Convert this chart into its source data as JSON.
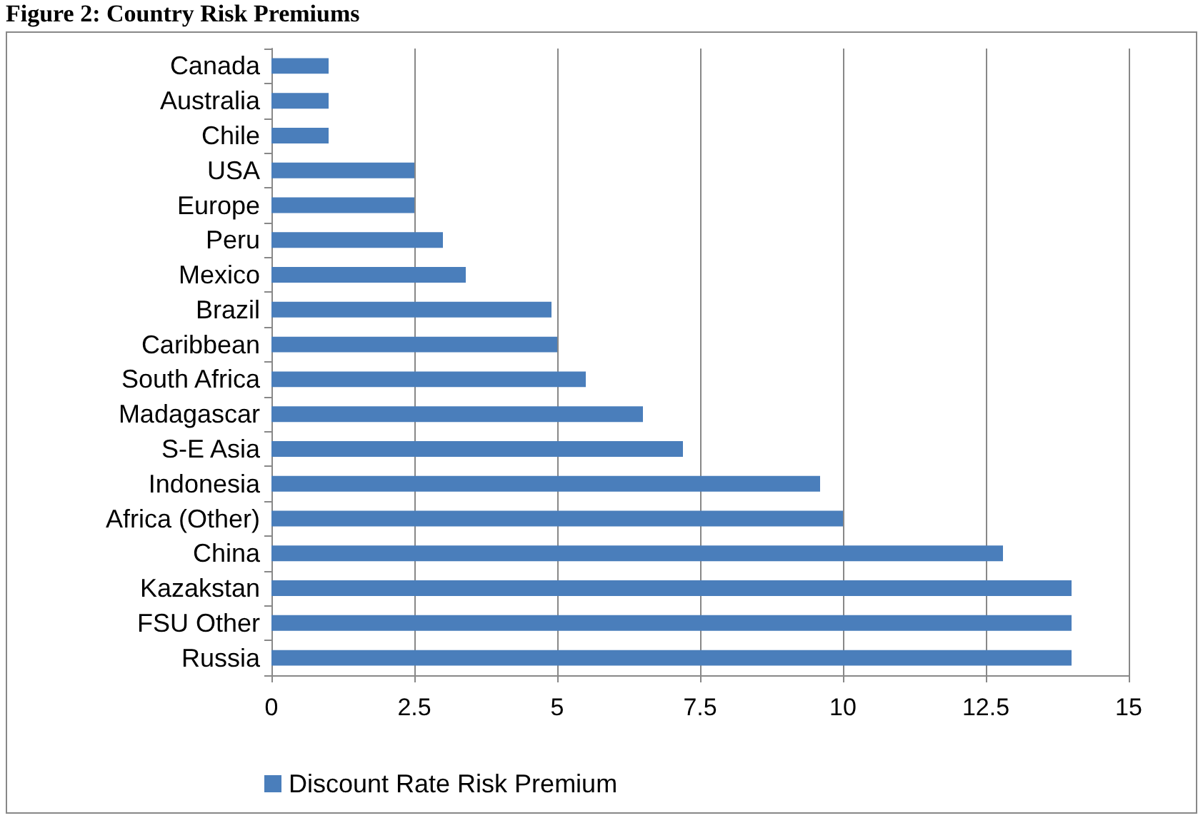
{
  "chart_data": {
    "type": "bar",
    "orientation": "horizontal",
    "title": "Figure 2: Country Risk Premiums",
    "categories": [
      "Canada",
      "Australia",
      "Chile",
      "USA",
      "Europe",
      "Peru",
      "Mexico",
      "Brazil",
      "Caribbean",
      "South Africa",
      "Madagascar",
      "S-E Asia",
      "Indonesia",
      "Africa (Other)",
      "China",
      "Kazakstan",
      "FSU Other",
      "Russia"
    ],
    "series": [
      {
        "name": "Discount Rate Risk Premium",
        "color": "#4a7ebb",
        "values": [
          1,
          1,
          1,
          2.5,
          2.5,
          3,
          3.4,
          4.9,
          5,
          5.5,
          6.5,
          7.2,
          9.6,
          10,
          12.8,
          14,
          14,
          14
        ]
      }
    ],
    "xlim": [
      0,
      15
    ],
    "xticks": [
      0,
      {
        "value": 2.5,
        "label": "2.5"
      },
      5,
      {
        "value": 7.5,
        "label": "7.5"
      },
      10,
      {
        "value": 12.5,
        "label": "12.5"
      },
      15
    ],
    "grid": "x",
    "legend": "bottom"
  }
}
